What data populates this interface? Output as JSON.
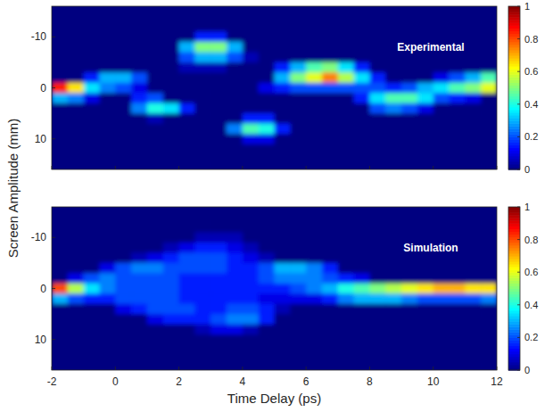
{
  "chart_data": [
    {
      "type": "heatmap",
      "title": "Experimental",
      "ylabel": "Screen Amplitude (mm)",
      "xlim": [
        -2,
        12
      ],
      "ylim": [
        16,
        -16
      ],
      "xticks": [
        -2,
        0,
        2,
        4,
        6,
        8,
        10,
        12
      ],
      "yticks": [
        -10,
        0,
        10
      ],
      "tick_labels": "y",
      "x_bins": [
        -2,
        -1.5,
        -1,
        -0.5,
        0,
        0.5,
        1,
        1.5,
        2,
        2.5,
        3,
        3.5,
        4,
        4.5,
        5,
        5.5,
        6,
        6.5,
        7,
        7.5,
        8,
        8.5,
        9,
        9.5,
        10,
        10.5,
        11,
        11.5,
        12
      ],
      "y_bins": [
        -17,
        -15,
        -13,
        -11,
        -9,
        -7,
        -5,
        -3,
        -1,
        1,
        3,
        5,
        7,
        9,
        11,
        13,
        15,
        17
      ],
      "cells": [
        [
          0,
          0,
          0,
          0,
          0,
          0,
          0,
          0,
          0,
          0,
          0,
          0,
          0,
          0,
          0,
          0,
          0,
          0,
          0,
          0,
          0,
          0,
          0,
          0,
          0,
          0,
          0,
          0
        ],
        [
          0,
          0,
          0,
          0,
          0,
          0,
          0,
          0,
          0,
          0,
          0,
          0,
          0,
          0,
          0,
          0,
          0,
          0,
          0,
          0,
          0,
          0,
          0,
          0,
          0,
          0,
          0,
          0
        ],
        [
          0,
          0,
          0,
          0,
          0,
          0,
          0,
          0,
          0,
          0,
          0,
          0,
          0,
          0,
          0,
          0,
          0,
          0,
          0,
          0,
          0,
          0,
          0,
          0,
          0,
          0,
          0,
          0
        ],
        [
          0,
          0,
          0,
          0,
          0,
          0,
          0,
          0,
          0,
          0.15,
          0.15,
          0,
          0,
          0,
          0,
          0,
          0,
          0,
          0,
          0,
          0,
          0,
          0,
          0,
          0,
          0,
          0,
          0
        ],
        [
          0,
          0,
          0,
          0,
          0,
          0,
          0,
          0,
          0.3,
          0.5,
          0.5,
          0.3,
          0,
          0,
          0,
          0,
          0,
          0,
          0,
          0,
          0,
          0,
          0,
          0,
          0,
          0,
          0,
          0
        ],
        [
          0,
          0,
          0,
          0,
          0,
          0,
          0,
          0,
          0.2,
          0.3,
          0.3,
          0.2,
          0.05,
          0,
          0,
          0,
          0,
          0,
          0,
          0,
          0,
          0,
          0,
          0,
          0,
          0,
          0,
          0
        ],
        [
          0,
          0,
          0,
          0,
          0,
          0,
          0,
          0,
          0.05,
          0.05,
          0.05,
          0,
          0,
          0,
          0.15,
          0.3,
          0.45,
          0.5,
          0.35,
          0.15,
          0,
          0,
          0,
          0,
          0,
          0,
          0,
          0
        ],
        [
          0,
          0,
          0.15,
          0.3,
          0.3,
          0.2,
          0,
          0,
          0,
          0,
          0,
          0,
          0,
          0,
          0.3,
          0.5,
          0.6,
          0.75,
          0.55,
          0.35,
          0.15,
          0,
          0,
          0,
          0.1,
          0.2,
          0.3,
          0.45
        ],
        [
          0.85,
          0.65,
          0.35,
          0.25,
          0.2,
          0.1,
          0,
          0,
          0,
          0,
          0,
          0,
          0,
          0.1,
          0.15,
          0.2,
          0.2,
          0.2,
          0.2,
          0.2,
          0.2,
          0.15,
          0.2,
          0.3,
          0.35,
          0.45,
          0.5,
          0.6
        ],
        [
          0.3,
          0.25,
          0.1,
          0,
          0,
          0.15,
          0.2,
          0,
          0,
          0,
          0,
          0,
          0,
          0,
          0,
          0,
          0,
          0,
          0,
          0.15,
          0.35,
          0.45,
          0.45,
          0.35,
          0.2,
          0.15,
          0.1,
          0
        ],
        [
          0,
          0,
          0,
          0,
          0,
          0.25,
          0.4,
          0.35,
          0.15,
          0,
          0,
          0,
          0,
          0,
          0,
          0,
          0,
          0,
          0,
          0,
          0.2,
          0.25,
          0.2,
          0.1,
          0,
          0,
          0,
          0
        ],
        [
          0,
          0,
          0,
          0,
          0,
          0,
          0.05,
          0,
          0,
          0,
          0,
          0,
          0.15,
          0.15,
          0,
          0,
          0,
          0,
          0,
          0,
          0,
          0,
          0,
          0,
          0,
          0,
          0,
          0
        ],
        [
          0,
          0,
          0,
          0,
          0,
          0,
          0,
          0,
          0,
          0,
          0,
          0.25,
          0.45,
          0.4,
          0.15,
          0,
          0,
          0,
          0,
          0,
          0,
          0,
          0,
          0,
          0,
          0,
          0,
          0
        ],
        [
          0,
          0,
          0,
          0,
          0,
          0,
          0,
          0,
          0,
          0,
          0,
          0,
          0.1,
          0.1,
          0,
          0,
          0,
          0,
          0,
          0,
          0,
          0,
          0,
          0,
          0,
          0,
          0,
          0
        ],
        [
          0,
          0,
          0,
          0,
          0,
          0,
          0,
          0,
          0,
          0,
          0,
          0,
          0,
          0,
          0,
          0,
          0,
          0,
          0,
          0,
          0,
          0,
          0,
          0,
          0,
          0,
          0,
          0
        ],
        [
          0,
          0,
          0,
          0,
          0,
          0,
          0,
          0,
          0,
          0,
          0,
          0,
          0,
          0,
          0,
          0,
          0,
          0,
          0,
          0,
          0,
          0,
          0,
          0,
          0,
          0,
          0,
          0
        ],
        [
          0,
          0,
          0,
          0,
          0,
          0,
          0,
          0,
          0,
          0,
          0,
          0,
          0,
          0,
          0,
          0,
          0,
          0,
          0,
          0,
          0,
          0,
          0,
          0,
          0,
          0,
          0,
          0
        ]
      ],
      "colorbar": {
        "range": [
          0,
          1
        ],
        "ticks": [
          0,
          0.2,
          0.4,
          0.6,
          0.8,
          1
        ]
      }
    },
    {
      "type": "heatmap",
      "title": "Simulation",
      "xlabel": "Time Delay (ps)",
      "xlim": [
        -2,
        12
      ],
      "ylim": [
        16,
        -16
      ],
      "xticks": [
        -2,
        0,
        2,
        4,
        6,
        8,
        10,
        12
      ],
      "yticks": [
        -10,
        0,
        10
      ],
      "x_bins": [
        -2,
        -1.5,
        -1,
        -0.5,
        0,
        0.5,
        1,
        1.5,
        2,
        2.5,
        3,
        3.5,
        4,
        4.5,
        5,
        5.5,
        6,
        6.5,
        7,
        7.5,
        8,
        8.5,
        9,
        9.5,
        10,
        10.5,
        11,
        11.5,
        12
      ],
      "y_bins": [
        -17,
        -15,
        -13,
        -11,
        -9,
        -7,
        -5,
        -3,
        -1,
        1,
        3,
        5,
        7,
        9,
        11,
        13,
        15,
        17
      ],
      "cells": [
        [
          0,
          0,
          0,
          0,
          0,
          0,
          0,
          0,
          0,
          0,
          0,
          0,
          0,
          0,
          0,
          0,
          0,
          0,
          0,
          0,
          0,
          0,
          0,
          0,
          0,
          0,
          0,
          0
        ],
        [
          0,
          0,
          0,
          0,
          0,
          0,
          0,
          0,
          0,
          0,
          0,
          0,
          0,
          0,
          0,
          0,
          0,
          0,
          0,
          0,
          0,
          0,
          0,
          0,
          0,
          0,
          0,
          0
        ],
        [
          0,
          0,
          0,
          0,
          0,
          0,
          0,
          0,
          0,
          0,
          0,
          0,
          0,
          0,
          0,
          0,
          0,
          0,
          0,
          0,
          0,
          0,
          0,
          0,
          0,
          0,
          0,
          0
        ],
        [
          0,
          0,
          0,
          0,
          0,
          0,
          0,
          0,
          0,
          0.05,
          0.05,
          0.05,
          0,
          0,
          0,
          0,
          0,
          0,
          0,
          0,
          0,
          0,
          0,
          0,
          0,
          0,
          0,
          0
        ],
        [
          0,
          0,
          0,
          0,
          0,
          0,
          0,
          0.05,
          0.1,
          0.15,
          0.15,
          0.1,
          0.05,
          0,
          0,
          0,
          0,
          0,
          0,
          0,
          0,
          0,
          0,
          0,
          0,
          0,
          0,
          0
        ],
        [
          0,
          0,
          0,
          0,
          0,
          0.05,
          0.1,
          0.15,
          0.2,
          0.2,
          0.2,
          0.15,
          0.1,
          0.05,
          0,
          0,
          0,
          0,
          0,
          0,
          0,
          0,
          0,
          0,
          0,
          0,
          0,
          0
        ],
        [
          0,
          0,
          0,
          0.1,
          0.2,
          0.25,
          0.25,
          0.2,
          0.2,
          0.2,
          0.2,
          0.15,
          0.15,
          0.2,
          0.3,
          0.3,
          0.25,
          0.15,
          0,
          0,
          0,
          0,
          0,
          0,
          0,
          0,
          0,
          0
        ],
        [
          0,
          0.1,
          0.2,
          0.25,
          0.2,
          0.2,
          0.2,
          0.2,
          0.15,
          0.15,
          0.15,
          0.15,
          0.15,
          0.2,
          0.25,
          0.25,
          0.25,
          0.2,
          0.15,
          0.1,
          0,
          0,
          0,
          0,
          0,
          0,
          0,
          0
        ],
        [
          0.8,
          0.55,
          0.35,
          0.25,
          0.2,
          0.2,
          0.2,
          0.2,
          0.15,
          0.15,
          0.15,
          0.15,
          0.15,
          0.15,
          0.15,
          0.2,
          0.25,
          0.3,
          0.4,
          0.45,
          0.5,
          0.55,
          0.6,
          0.65,
          0.7,
          0.7,
          0.65,
          0.65
        ],
        [
          0.3,
          0.2,
          0.15,
          0.15,
          0.2,
          0.2,
          0.2,
          0.2,
          0.15,
          0.15,
          0.15,
          0.15,
          0.15,
          0.1,
          0.1,
          0.1,
          0.1,
          0.15,
          0.25,
          0.3,
          0.3,
          0.3,
          0.25,
          0.2,
          0.2,
          0.2,
          0.2,
          0.25
        ],
        [
          0,
          0,
          0,
          0,
          0.1,
          0.15,
          0.2,
          0.2,
          0.2,
          0.15,
          0.15,
          0.2,
          0.2,
          0.15,
          0.05,
          0,
          0,
          0,
          0,
          0,
          0,
          0,
          0,
          0,
          0,
          0,
          0,
          0
        ],
        [
          0,
          0,
          0,
          0,
          0,
          0,
          0.1,
          0.15,
          0.15,
          0.15,
          0.2,
          0.25,
          0.25,
          0.15,
          0,
          0,
          0,
          0,
          0,
          0,
          0,
          0,
          0,
          0,
          0,
          0,
          0,
          0
        ],
        [
          0,
          0,
          0,
          0,
          0,
          0,
          0,
          0,
          0,
          0.05,
          0.1,
          0.1,
          0.05,
          0,
          0,
          0,
          0,
          0,
          0,
          0,
          0,
          0,
          0,
          0,
          0,
          0,
          0,
          0
        ],
        [
          0,
          0,
          0,
          0,
          0,
          0,
          0,
          0,
          0,
          0,
          0,
          0,
          0,
          0,
          0,
          0,
          0,
          0,
          0,
          0,
          0,
          0,
          0,
          0,
          0,
          0,
          0,
          0
        ],
        [
          0,
          0,
          0,
          0,
          0,
          0,
          0,
          0,
          0,
          0,
          0,
          0,
          0,
          0,
          0,
          0,
          0,
          0,
          0,
          0,
          0,
          0,
          0,
          0,
          0,
          0,
          0,
          0
        ],
        [
          0,
          0,
          0,
          0,
          0,
          0,
          0,
          0,
          0,
          0,
          0,
          0,
          0,
          0,
          0,
          0,
          0,
          0,
          0,
          0,
          0,
          0,
          0,
          0,
          0,
          0,
          0,
          0
        ],
        [
          0,
          0,
          0,
          0,
          0,
          0,
          0,
          0,
          0,
          0,
          0,
          0,
          0,
          0,
          0,
          0,
          0,
          0,
          0,
          0,
          0,
          0,
          0,
          0,
          0,
          0,
          0,
          0
        ]
      ],
      "colorbar": {
        "range": [
          0,
          1
        ],
        "ticks": [
          0,
          0.2,
          0.4,
          0.6,
          0.8,
          1
        ]
      }
    }
  ]
}
